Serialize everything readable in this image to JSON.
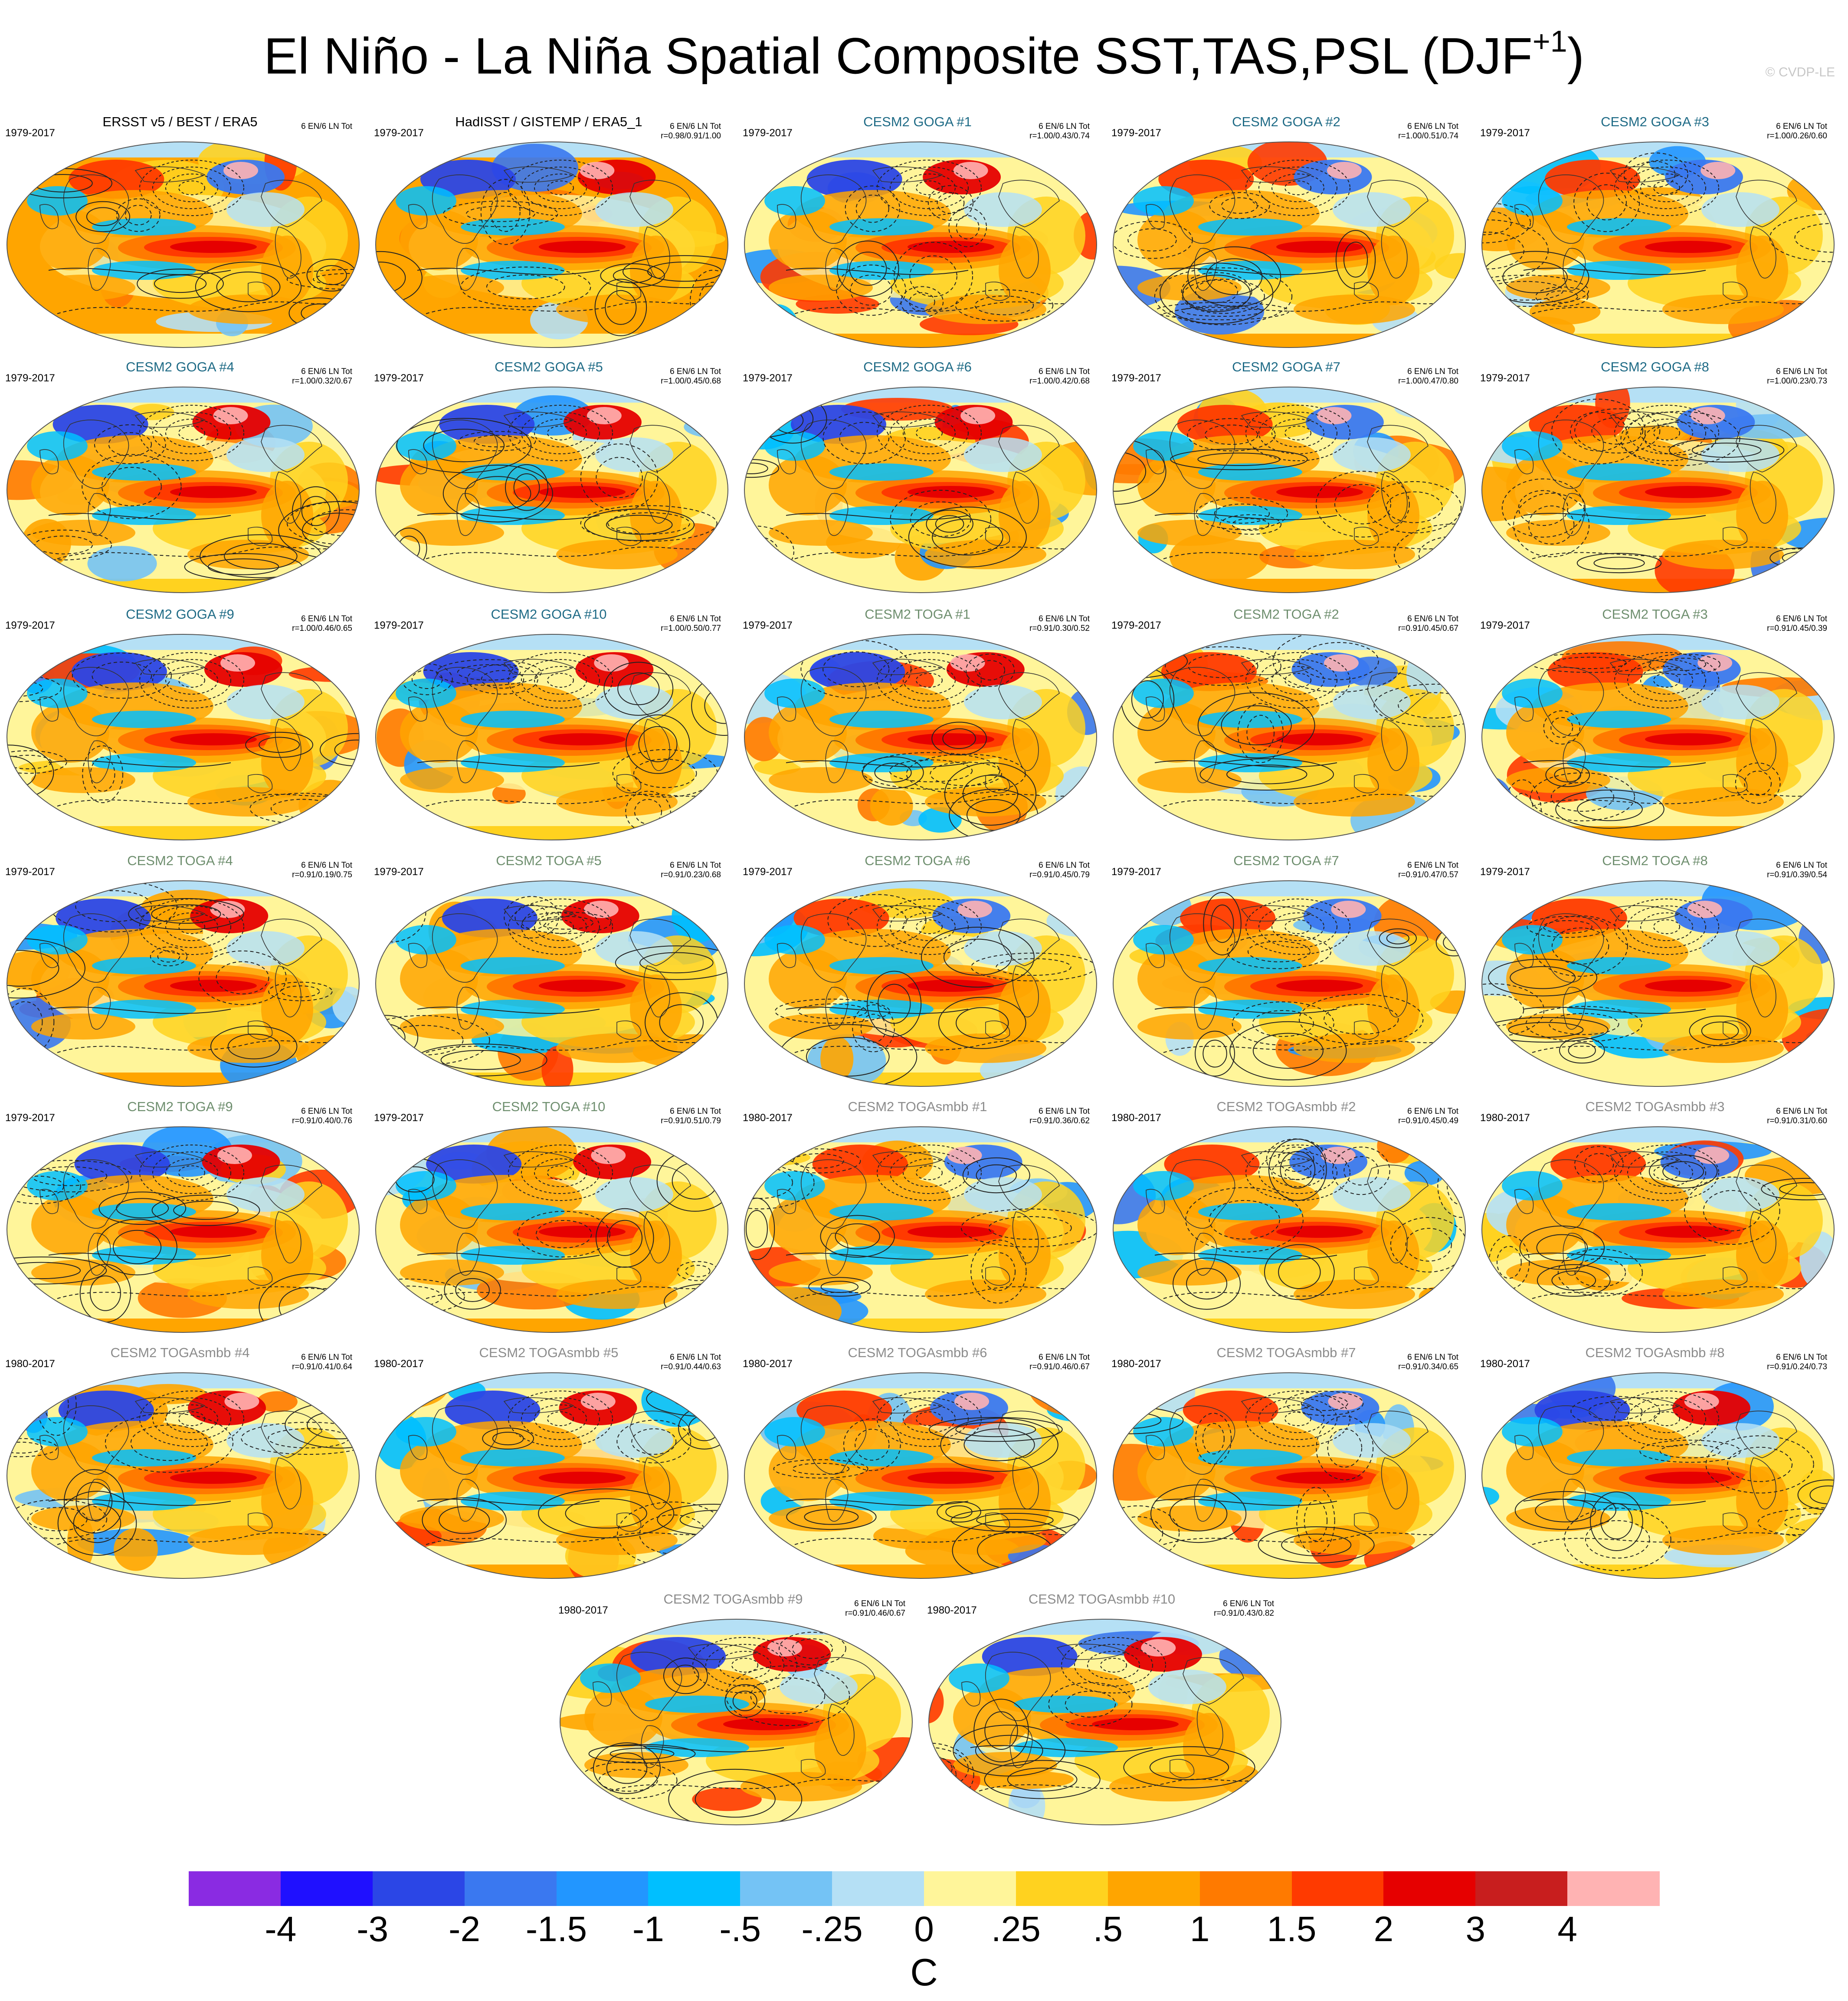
{
  "figure": {
    "title_main": "El Niño - La Niña Spatial Composite SST,TAS,PSL (DJF",
    "title_superscript": "+1",
    "title_close": ")",
    "copyright": "© CVDP-LE"
  },
  "colors": {
    "obs_title": "#000000",
    "goga_title": "#1f6b86",
    "toga_title": "#6f8f6f",
    "togasmbb_title": "#8c8c8c",
    "land_ocean_edge": "#333333"
  },
  "panels": [
    {
      "title": "ERSST v5 / BEST / ERA5",
      "years": "1979-2017",
      "stats1": "6 EN/6 LN Tot",
      "stats2": "",
      "group": "obs",
      "variant": 0
    },
    {
      "title": "HadISST / GISTEMP / ERA5_1",
      "years": "1979-2017",
      "stats1": "6 EN/6 LN Tot",
      "stats2": "r=0.98/0.91/1.00",
      "group": "obs",
      "variant": 1
    },
    {
      "title": "CESM2 GOGA #1",
      "years": "1979-2017",
      "stats1": "6 EN/6 LN Tot",
      "stats2": "r=1.00/0.43/0.74",
      "group": "goga",
      "variant": 2
    },
    {
      "title": "CESM2 GOGA #2",
      "years": "1979-2017",
      "stats1": "6 EN/6 LN Tot",
      "stats2": "r=1.00/0.51/0.74",
      "group": "goga",
      "variant": 3
    },
    {
      "title": "CESM2 GOGA #3",
      "years": "1979-2017",
      "stats1": "6 EN/6 LN Tot",
      "stats2": "r=1.00/0.26/0.60",
      "group": "goga",
      "variant": 4
    },
    {
      "title": "CESM2 GOGA #4",
      "years": "1979-2017",
      "stats1": "6 EN/6 LN Tot",
      "stats2": "r=1.00/0.32/0.67",
      "group": "goga",
      "variant": 5
    },
    {
      "title": "CESM2 GOGA #5",
      "years": "1979-2017",
      "stats1": "6 EN/6 LN Tot",
      "stats2": "r=1.00/0.45/0.68",
      "group": "goga",
      "variant": 6
    },
    {
      "title": "CESM2 GOGA #6",
      "years": "1979-2017",
      "stats1": "6 EN/6 LN Tot",
      "stats2": "r=1.00/0.42/0.68",
      "group": "goga",
      "variant": 7
    },
    {
      "title": "CESM2 GOGA #7",
      "years": "1979-2017",
      "stats1": "6 EN/6 LN Tot",
      "stats2": "r=1.00/0.47/0.80",
      "group": "goga",
      "variant": 8
    },
    {
      "title": "CESM2 GOGA #8",
      "years": "1979-2017",
      "stats1": "6 EN/6 LN Tot",
      "stats2": "r=1.00/0.23/0.73",
      "group": "goga",
      "variant": 9
    },
    {
      "title": "CESM2 GOGA #9",
      "years": "1979-2017",
      "stats1": "6 EN/6 LN Tot",
      "stats2": "r=1.00/0.46/0.65",
      "group": "goga",
      "variant": 10
    },
    {
      "title": "CESM2 GOGA #10",
      "years": "1979-2017",
      "stats1": "6 EN/6 LN Tot",
      "stats2": "r=1.00/0.50/0.77",
      "group": "goga",
      "variant": 11
    },
    {
      "title": "CESM2 TOGA #1",
      "years": "1979-2017",
      "stats1": "6 EN/6 LN Tot",
      "stats2": "r=0.91/0.30/0.52",
      "group": "toga",
      "variant": 12
    },
    {
      "title": "CESM2 TOGA #2",
      "years": "1979-2017",
      "stats1": "6 EN/6 LN Tot",
      "stats2": "r=0.91/0.45/0.67",
      "group": "toga",
      "variant": 13
    },
    {
      "title": "CESM2 TOGA #3",
      "years": "1979-2017",
      "stats1": "6 EN/6 LN Tot",
      "stats2": "r=0.91/0.45/0.39",
      "group": "toga",
      "variant": 14
    },
    {
      "title": "CESM2 TOGA #4",
      "years": "1979-2017",
      "stats1": "6 EN/6 LN Tot",
      "stats2": "r=0.91/0.19/0.75",
      "group": "toga",
      "variant": 15
    },
    {
      "title": "CESM2 TOGA #5",
      "years": "1979-2017",
      "stats1": "6 EN/6 LN Tot",
      "stats2": "r=0.91/0.23/0.68",
      "group": "toga",
      "variant": 16
    },
    {
      "title": "CESM2 TOGA #6",
      "years": "1979-2017",
      "stats1": "6 EN/6 LN Tot",
      "stats2": "r=0.91/0.45/0.79",
      "group": "toga",
      "variant": 17
    },
    {
      "title": "CESM2 TOGA #7",
      "years": "1979-2017",
      "stats1": "6 EN/6 LN Tot",
      "stats2": "r=0.91/0.47/0.57",
      "group": "toga",
      "variant": 18
    },
    {
      "title": "CESM2 TOGA #8",
      "years": "1979-2017",
      "stats1": "6 EN/6 LN Tot",
      "stats2": "r=0.91/0.39/0.54",
      "group": "toga",
      "variant": 19
    },
    {
      "title": "CESM2 TOGA #9",
      "years": "1979-2017",
      "stats1": "6 EN/6 LN Tot",
      "stats2": "r=0.91/0.40/0.76",
      "group": "toga",
      "variant": 20
    },
    {
      "title": "CESM2 TOGA #10",
      "years": "1979-2017",
      "stats1": "6 EN/6 LN Tot",
      "stats2": "r=0.91/0.51/0.79",
      "group": "toga",
      "variant": 21
    },
    {
      "title": "CESM2 TOGAsmbb #1",
      "years": "1980-2017",
      "stats1": "6 EN/6 LN Tot",
      "stats2": "r=0.91/0.36/0.62",
      "group": "togasmbb",
      "variant": 22
    },
    {
      "title": "CESM2 TOGAsmbb #2",
      "years": "1980-2017",
      "stats1": "6 EN/6 LN Tot",
      "stats2": "r=0.91/0.45/0.49",
      "group": "togasmbb",
      "variant": 23
    },
    {
      "title": "CESM2 TOGAsmbb #3",
      "years": "1980-2017",
      "stats1": "6 EN/6 LN Tot",
      "stats2": "r=0.91/0.31/0.60",
      "group": "togasmbb",
      "variant": 24
    },
    {
      "title": "CESM2 TOGAsmbb #4",
      "years": "1980-2017",
      "stats1": "6 EN/6 LN Tot",
      "stats2": "r=0.91/0.41/0.64",
      "group": "togasmbb",
      "variant": 25
    },
    {
      "title": "CESM2 TOGAsmbb #5",
      "years": "1980-2017",
      "stats1": "6 EN/6 LN Tot",
      "stats2": "r=0.91/0.44/0.63",
      "group": "togasmbb",
      "variant": 26
    },
    {
      "title": "CESM2 TOGAsmbb #6",
      "years": "1980-2017",
      "stats1": "6 EN/6 LN Tot",
      "stats2": "r=0.91/0.46/0.67",
      "group": "togasmbb",
      "variant": 27
    },
    {
      "title": "CESM2 TOGAsmbb #7",
      "years": "1980-2017",
      "stats1": "6 EN/6 LN Tot",
      "stats2": "r=0.91/0.34/0.65",
      "group": "togasmbb",
      "variant": 28
    },
    {
      "title": "CESM2 TOGAsmbb #8",
      "years": "1980-2017",
      "stats1": "6 EN/6 LN Tot",
      "stats2": "r=0.91/0.24/0.73",
      "group": "togasmbb",
      "variant": 29
    },
    {
      "title": "CESM2 TOGAsmbb #9",
      "years": "1980-2017",
      "stats1": "6 EN/6 LN Tot",
      "stats2": "r=0.91/0.46/0.67",
      "group": "togasmbb",
      "variant": 30
    },
    {
      "title": "CESM2 TOGAsmbb #10",
      "years": "1980-2017",
      "stats1": "6 EN/6 LN Tot",
      "stats2": "r=0.91/0.43/0.82",
      "group": "togasmbb",
      "variant": 31
    }
  ],
  "colorbar": {
    "colors": [
      "#8a2be2",
      "#1f10ff",
      "#2b46e6",
      "#3a78f0",
      "#2296ff",
      "#00bfff",
      "#74c3f5",
      "#b5e0f5",
      "#fff59a",
      "#ffd21f",
      "#ffa500",
      "#ff7a00",
      "#ff3a00",
      "#e60000",
      "#c81e1e",
      "#ffb3b3"
    ],
    "labels": [
      "-4",
      "-3",
      "-2",
      "-1.5",
      "-1",
      "-.5",
      "-.25",
      "0",
      ".25",
      ".5",
      "1",
      "1.5",
      "2",
      "3",
      "4"
    ],
    "units": "C"
  }
}
